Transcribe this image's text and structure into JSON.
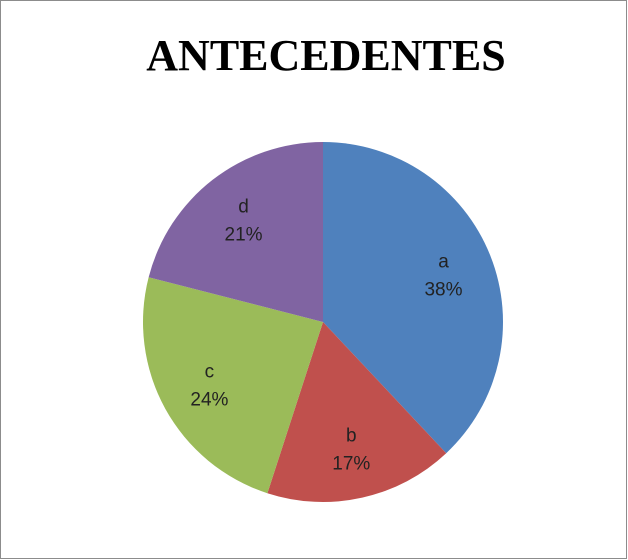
{
  "chart_data": {
    "type": "pie",
    "title": "ANTECEDENTES",
    "categories": [
      "a",
      "b",
      "c",
      "d"
    ],
    "values": [
      38,
      17,
      24,
      21
    ],
    "value_labels": [
      "38%",
      "17%",
      "24%",
      "21%"
    ],
    "colors": [
      "#4f81bd",
      "#c0504d",
      "#9bbb59",
      "#8064a2"
    ]
  }
}
